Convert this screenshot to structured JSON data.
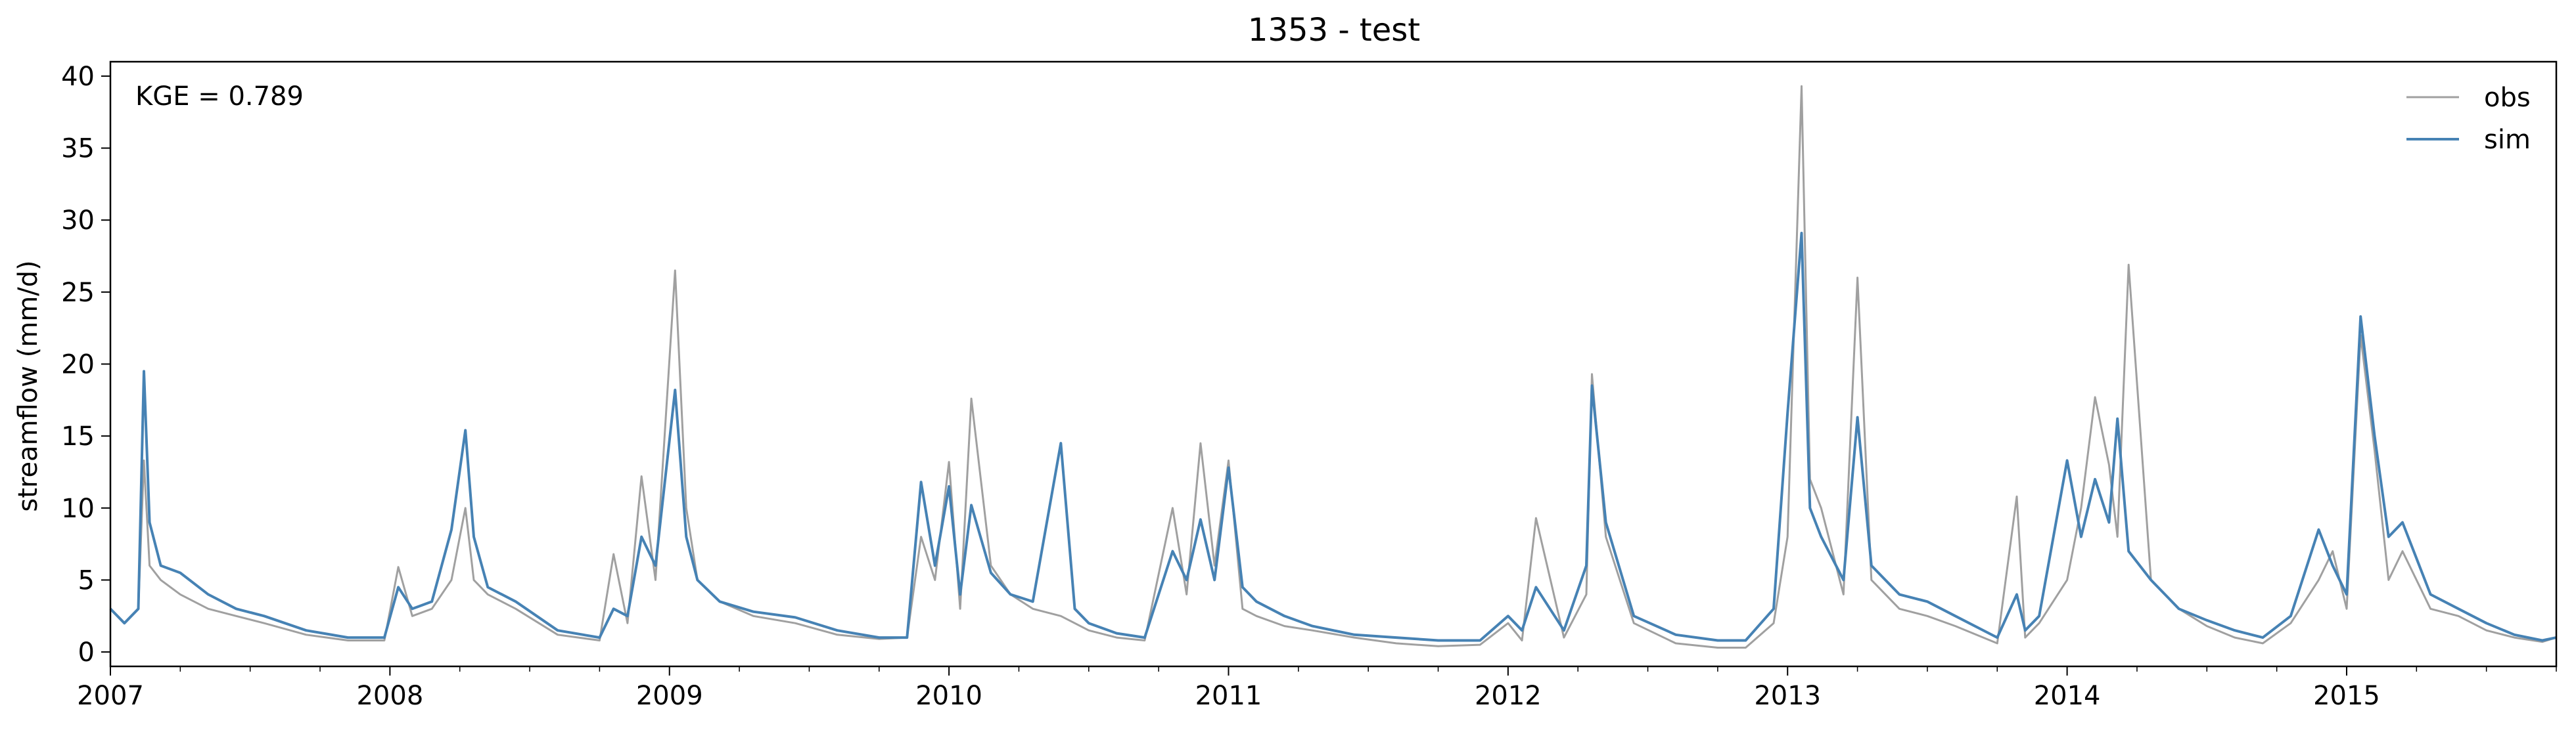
{
  "chart_data": {
    "type": "line",
    "title": "1353 - test",
    "xlabel": "",
    "ylabel": "streamflow (mm/d)",
    "annotation": "KGE = 0.789",
    "xlim": [
      2007.0,
      2015.75
    ],
    "ylim": [
      -1,
      41
    ],
    "x_ticks": [
      2007,
      2008,
      2009,
      2010,
      2011,
      2012,
      2013,
      2014,
      2015
    ],
    "x_tick_labels": [
      "2007",
      "2008",
      "2009",
      "2010",
      "2011",
      "2012",
      "2013",
      "2014",
      "2015"
    ],
    "y_ticks": [
      0,
      5,
      10,
      15,
      20,
      25,
      30,
      35,
      40
    ],
    "y_tick_labels": [
      "0",
      "5",
      "10",
      "15",
      "20",
      "25",
      "30",
      "35",
      "40"
    ],
    "legend_position": "top-right",
    "series": [
      {
        "name": "obs",
        "color": "#a0a0a0",
        "x": [
          2007.0,
          2007.05,
          2007.1,
          2007.12,
          2007.14,
          2007.18,
          2007.25,
          2007.35,
          2007.45,
          2007.55,
          2007.7,
          2007.85,
          2007.98,
          2008.03,
          2008.08,
          2008.15,
          2008.22,
          2008.27,
          2008.3,
          2008.35,
          2008.45,
          2008.6,
          2008.75,
          2008.8,
          2008.85,
          2008.9,
          2008.95,
          2009.02,
          2009.06,
          2009.1,
          2009.18,
          2009.3,
          2009.45,
          2009.6,
          2009.75,
          2009.85,
          2009.9,
          2009.95,
          2010.0,
          2010.04,
          2010.08,
          2010.15,
          2010.22,
          2010.3,
          2010.4,
          2010.45,
          2010.5,
          2010.6,
          2010.7,
          2010.8,
          2010.85,
          2010.9,
          2010.95,
          2011.0,
          2011.05,
          2011.1,
          2011.2,
          2011.3,
          2011.45,
          2011.6,
          2011.75,
          2011.9,
          2012.0,
          2012.05,
          2012.1,
          2012.2,
          2012.28,
          2012.3,
          2012.35,
          2012.45,
          2012.6,
          2012.75,
          2012.85,
          2012.95,
          2013.0,
          2013.05,
          2013.08,
          2013.12,
          2013.2,
          2013.25,
          2013.3,
          2013.4,
          2013.5,
          2013.6,
          2013.75,
          2013.82,
          2013.85,
          2013.9,
          2014.0,
          2014.05,
          2014.1,
          2014.15,
          2014.18,
          2014.22,
          2014.3,
          2014.4,
          2014.5,
          2014.6,
          2014.7,
          2014.8,
          2014.9,
          2014.95,
          2015.0,
          2015.05,
          2015.1,
          2015.15,
          2015.2,
          2015.3,
          2015.4,
          2015.5,
          2015.6,
          2015.7,
          2015.75
        ],
        "values": [
          3.0,
          2.0,
          3.0,
          13.3,
          6.0,
          5.0,
          4.0,
          3.0,
          2.5,
          2.0,
          1.2,
          0.8,
          0.8,
          5.9,
          2.5,
          3.0,
          5.0,
          10.0,
          5.0,
          4.0,
          3.0,
          1.2,
          0.8,
          6.8,
          2.0,
          12.2,
          5.0,
          26.5,
          10.0,
          5.0,
          3.5,
          2.5,
          2.0,
          1.2,
          0.9,
          1.0,
          8.0,
          5.0,
          13.2,
          3.0,
          17.6,
          6.0,
          4.0,
          3.0,
          2.5,
          2.0,
          1.5,
          1.0,
          0.8,
          10.0,
          4.0,
          14.5,
          6.0,
          13.3,
          3.0,
          2.5,
          1.8,
          1.5,
          1.0,
          0.6,
          0.4,
          0.5,
          2.0,
          0.8,
          9.3,
          1.0,
          4.0,
          19.3,
          8.0,
          2.0,
          0.6,
          0.3,
          0.3,
          2.0,
          8.0,
          39.3,
          12.0,
          10.0,
          4.0,
          26.0,
          5.0,
          3.0,
          2.5,
          1.8,
          0.6,
          10.8,
          1.0,
          2.0,
          5.0,
          10.0,
          17.7,
          13.0,
          8.0,
          26.9,
          5.0,
          3.0,
          1.8,
          1.0,
          0.6,
          2.0,
          5.0,
          7.0,
          3.0,
          22.0,
          14.0,
          5.0,
          7.0,
          3.0,
          2.5,
          1.5,
          1.0,
          0.7,
          1.0
        ]
      },
      {
        "name": "sim",
        "color": "#4682b4",
        "x": [
          2007.0,
          2007.05,
          2007.1,
          2007.12,
          2007.14,
          2007.18,
          2007.25,
          2007.35,
          2007.45,
          2007.55,
          2007.7,
          2007.85,
          2007.98,
          2008.03,
          2008.08,
          2008.15,
          2008.22,
          2008.27,
          2008.3,
          2008.35,
          2008.45,
          2008.6,
          2008.75,
          2008.8,
          2008.85,
          2008.9,
          2008.95,
          2009.02,
          2009.06,
          2009.1,
          2009.18,
          2009.3,
          2009.45,
          2009.6,
          2009.75,
          2009.85,
          2009.9,
          2009.95,
          2010.0,
          2010.04,
          2010.08,
          2010.15,
          2010.22,
          2010.3,
          2010.4,
          2010.45,
          2010.5,
          2010.6,
          2010.7,
          2010.8,
          2010.85,
          2010.9,
          2010.95,
          2011.0,
          2011.05,
          2011.1,
          2011.2,
          2011.3,
          2011.45,
          2011.6,
          2011.75,
          2011.9,
          2012.0,
          2012.05,
          2012.1,
          2012.2,
          2012.28,
          2012.3,
          2012.35,
          2012.45,
          2012.6,
          2012.75,
          2012.85,
          2012.95,
          2013.0,
          2013.05,
          2013.08,
          2013.12,
          2013.2,
          2013.25,
          2013.3,
          2013.4,
          2013.5,
          2013.6,
          2013.75,
          2013.82,
          2013.85,
          2013.9,
          2014.0,
          2014.05,
          2014.1,
          2014.15,
          2014.18,
          2014.22,
          2014.3,
          2014.4,
          2014.5,
          2014.6,
          2014.7,
          2014.8,
          2014.9,
          2014.95,
          2015.0,
          2015.05,
          2015.1,
          2015.15,
          2015.2,
          2015.3,
          2015.4,
          2015.5,
          2015.6,
          2015.7,
          2015.75
        ],
        "values": [
          3.0,
          2.0,
          3.0,
          19.5,
          9.0,
          6.0,
          5.5,
          4.0,
          3.0,
          2.5,
          1.5,
          1.0,
          1.0,
          4.5,
          3.0,
          3.5,
          8.5,
          15.4,
          8.0,
          4.5,
          3.5,
          1.5,
          1.0,
          3.0,
          2.5,
          8.0,
          6.0,
          18.2,
          8.0,
          5.0,
          3.5,
          2.8,
          2.4,
          1.5,
          1.0,
          1.0,
          11.8,
          6.0,
          11.5,
          4.0,
          10.2,
          5.5,
          4.0,
          3.5,
          14.5,
          3.0,
          2.0,
          1.3,
          1.0,
          7.0,
          5.0,
          9.2,
          5.0,
          12.8,
          4.5,
          3.5,
          2.5,
          1.8,
          1.2,
          1.0,
          0.8,
          0.8,
          2.5,
          1.5,
          4.5,
          1.5,
          6.0,
          18.5,
          9.0,
          2.5,
          1.2,
          0.8,
          0.8,
          3.0,
          16.6,
          29.1,
          10.0,
          8.0,
          5.0,
          16.3,
          6.0,
          4.0,
          3.5,
          2.5,
          1.0,
          4.0,
          1.5,
          2.5,
          13.3,
          8.0,
          12.0,
          9.0,
          16.2,
          7.0,
          5.0,
          3.0,
          2.2,
          1.5,
          1.0,
          2.5,
          8.5,
          6.0,
          4.0,
          23.3,
          15.0,
          8.0,
          9.0,
          4.0,
          3.0,
          2.0,
          1.2,
          0.8,
          1.0
        ]
      }
    ]
  }
}
